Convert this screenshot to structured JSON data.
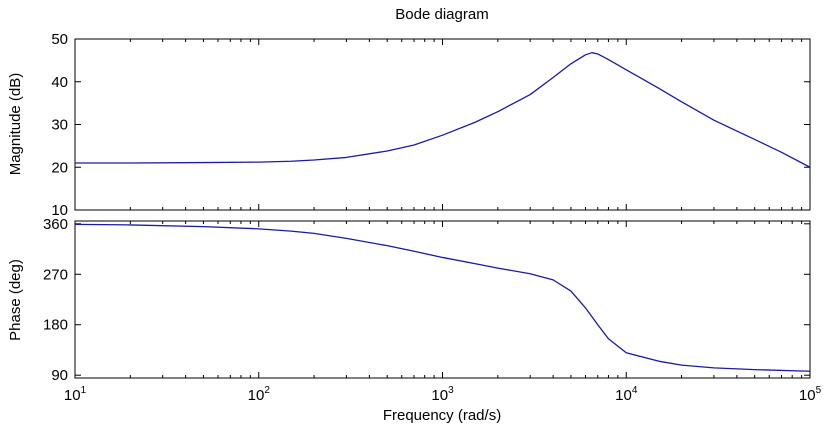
{
  "chart_data": [
    {
      "type": "line",
      "title": "Bode diagram",
      "xlabel": "",
      "ylabel": "Magnitude (dB)",
      "xscale": "log",
      "xlim": [
        10,
        100000
      ],
      "ylim": [
        10,
        50
      ],
      "yticks": [
        10,
        20,
        30,
        40,
        50
      ],
      "grid": false,
      "series": [
        {
          "color": "#1a1aa6",
          "x": [
            10,
            20,
            50,
            100,
            150,
            200,
            300,
            500,
            700,
            1000,
            1500,
            2000,
            3000,
            4000,
            5000,
            6000,
            6500,
            7000,
            8000,
            10000,
            15000,
            20000,
            30000,
            50000,
            70000,
            100000
          ],
          "y": [
            21,
            21,
            21.1,
            21.2,
            21.4,
            21.7,
            22.3,
            23.8,
            25.2,
            27.5,
            30.5,
            33,
            37,
            41,
            44.2,
            46.3,
            46.8,
            46.5,
            45.2,
            42.8,
            38.5,
            35.3,
            31,
            26.5,
            23.5,
            20
          ]
        }
      ]
    },
    {
      "type": "line",
      "title": "",
      "xlabel": "Frequency (rad/s)",
      "ylabel": "Phase (deg)",
      "xscale": "log",
      "xlim": [
        10,
        100000
      ],
      "ylim": [
        85,
        365
      ],
      "yticks": [
        90,
        180,
        270,
        360
      ],
      "grid": false,
      "series": [
        {
          "color": "#1a1aa6",
          "x": [
            10,
            20,
            50,
            100,
            150,
            200,
            300,
            500,
            700,
            1000,
            1500,
            2000,
            3000,
            4000,
            5000,
            6000,
            7000,
            8000,
            10000,
            15000,
            20000,
            30000,
            50000,
            100000
          ],
          "y": [
            359,
            358,
            355,
            351,
            347,
            343,
            334,
            321,
            311,
            300,
            289,
            281,
            271,
            260,
            240,
            210,
            180,
            155,
            130,
            115,
            108,
            103,
            100,
            97
          ]
        }
      ]
    }
  ],
  "x_tick_labels": [
    {
      "base": "10",
      "exp": "1"
    },
    {
      "base": "10",
      "exp": "2"
    },
    {
      "base": "10",
      "exp": "3"
    },
    {
      "base": "10",
      "exp": "4"
    },
    {
      "base": "10",
      "exp": "5"
    }
  ]
}
